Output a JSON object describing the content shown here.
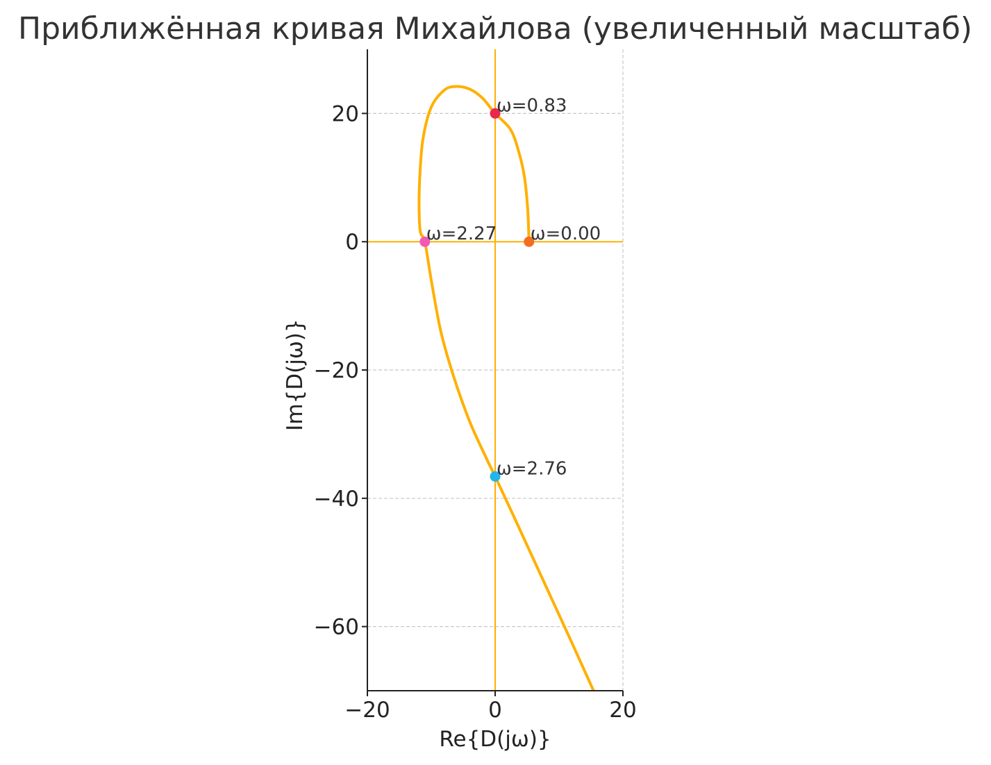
{
  "chart_data": {
    "type": "line",
    "title": "Приближённая кривая Михайлова (увеличенный масштаб)",
    "xlabel": "Re{D(jω)}",
    "ylabel": "Im{D(jω)}",
    "xlim": [
      -20,
      20
    ],
    "ylim": [
      -70,
      30
    ],
    "xticks": [
      -20,
      0,
      20
    ],
    "yticks": [
      -60,
      -40,
      -20,
      0,
      20
    ],
    "xtick_labels": [
      "−20",
      "0",
      "20"
    ],
    "ytick_labels": [
      "−60",
      "−40",
      "−20",
      "0",
      "20"
    ],
    "grid": true,
    "axes_lines": {
      "x": 0,
      "y": 0,
      "color": "#FFB000"
    },
    "series": [
      {
        "color": "#FFB000",
        "x": [
          5.3,
          5.1,
          4.6,
          3.7,
          2.4,
          0.0,
          -2.0,
          -4.0,
          -6.2,
          -8.0,
          -10.0,
          -11.3,
          -11.8,
          -11.9,
          -11.7,
          -11.0,
          -10.0,
          -8.5,
          -6.5,
          -4.0,
          -1.5,
          0.0,
          3.0,
          6.0,
          9.0,
          12.0,
          15.4
        ],
        "y": [
          0.0,
          5.0,
          10.0,
          14.0,
          17.5,
          20.0,
          22.4,
          23.8,
          24.2,
          23.6,
          21.0,
          16.0,
          10.0,
          5.0,
          1.5,
          0.0,
          -6.0,
          -14.0,
          -21.0,
          -28.0,
          -33.5,
          -36.6,
          -43.0,
          -49.5,
          -56.0,
          -62.5,
          -70.0
        ]
      }
    ],
    "points": [
      {
        "label": "ω=0.00",
        "x": 5.3,
        "y": 0.0,
        "color": "#F36E21"
      },
      {
        "label": "ω=0.83",
        "x": 0.0,
        "y": 20.0,
        "color": "#E8294B"
      },
      {
        "label": "ω=2.27",
        "x": -11.0,
        "y": 0.0,
        "color": "#F259B5"
      },
      {
        "label": "ω=2.76",
        "x": 0.0,
        "y": -36.6,
        "color": "#22B5EA"
      }
    ]
  }
}
